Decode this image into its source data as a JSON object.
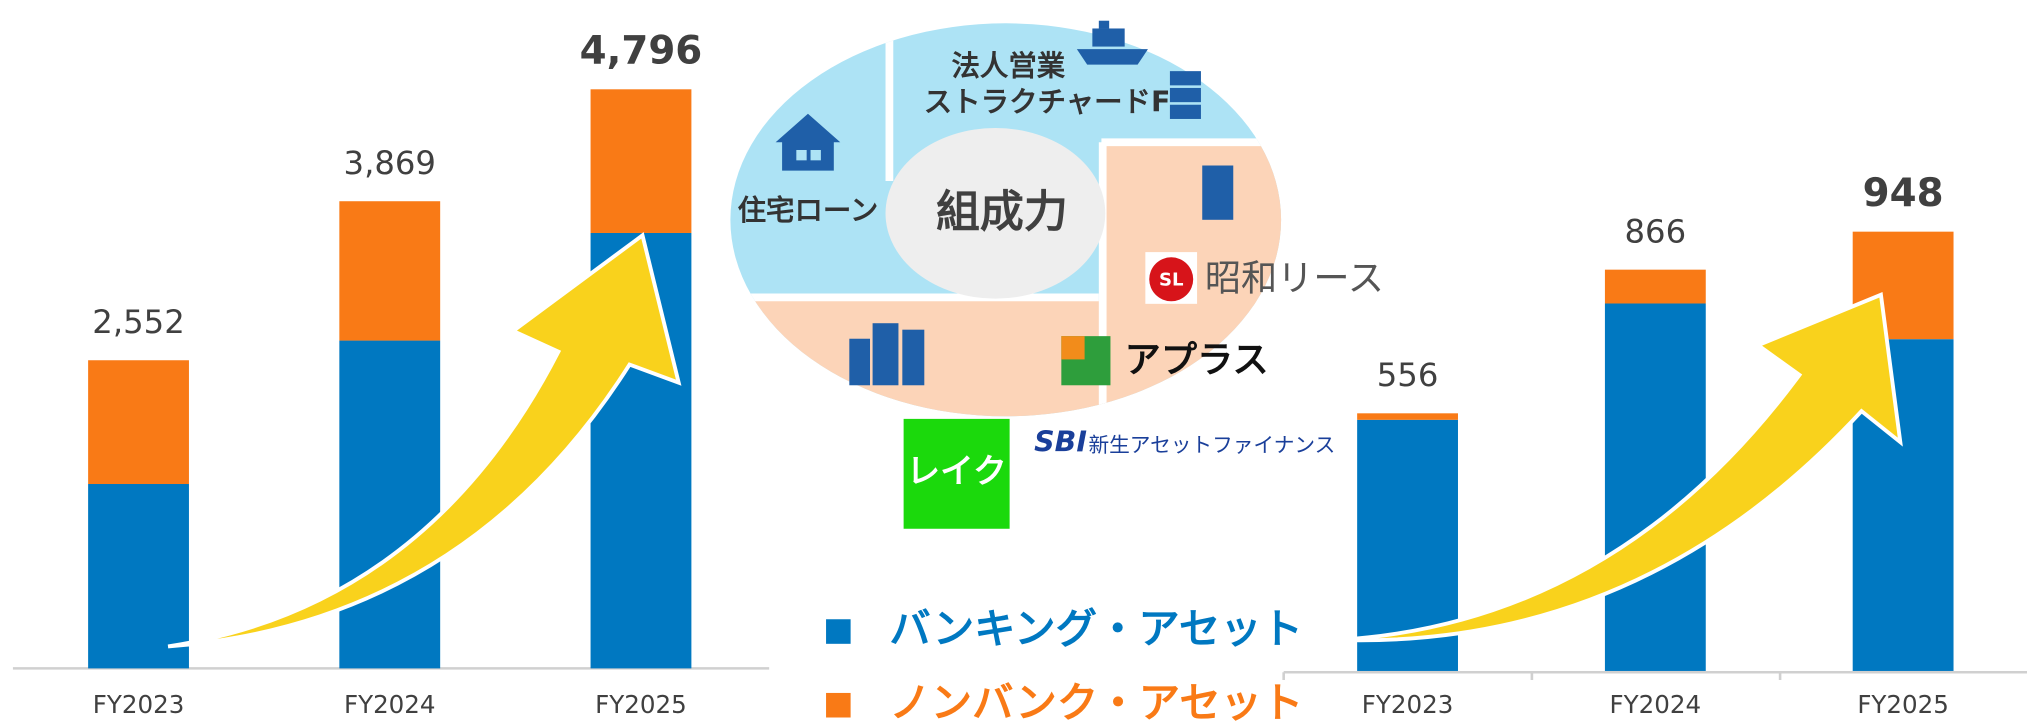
{
  "chart_data": [
    {
      "type": "bar",
      "stacked": true,
      "categories": [
        "FY2023",
        "FY2024",
        "FY2025"
      ],
      "series": [
        {
          "name": "バンキング・アセット",
          "color": "#0078c1",
          "values": [
            1527,
            2715,
            3606
          ]
        },
        {
          "name": "ノンバンク・アセット",
          "color": "#f97a16",
          "values": [
            1025,
            1154,
            1190
          ]
        }
      ],
      "totals": [
        2552,
        3869,
        4796
      ],
      "total_labels": [
        "2,552",
        "3,869",
        "4,796"
      ],
      "ylim": [
        0,
        5000
      ]
    },
    {
      "type": "bar",
      "stacked": true,
      "categories": [
        "FY2023",
        "FY2024",
        "FY2025"
      ],
      "series": [
        {
          "name": "バンキング・アセット",
          "color": "#0078c1",
          "values": [
            542,
            793,
            716
          ]
        },
        {
          "name": "ノンバンク・アセット",
          "color": "#f97a16",
          "values": [
            14,
            73,
            232
          ]
        }
      ],
      "totals": [
        556,
        866,
        948
      ],
      "ylim": [
        0,
        1300
      ]
    }
  ],
  "diagram": {
    "center": "組成力",
    "segments": [
      "法人営業",
      "ストラクチャードF",
      "住宅ローン"
    ],
    "logos": [
      "昭和リース",
      "アプラス",
      "SBI",
      "新生アセットファイナンス",
      "レイク"
    ]
  }
}
